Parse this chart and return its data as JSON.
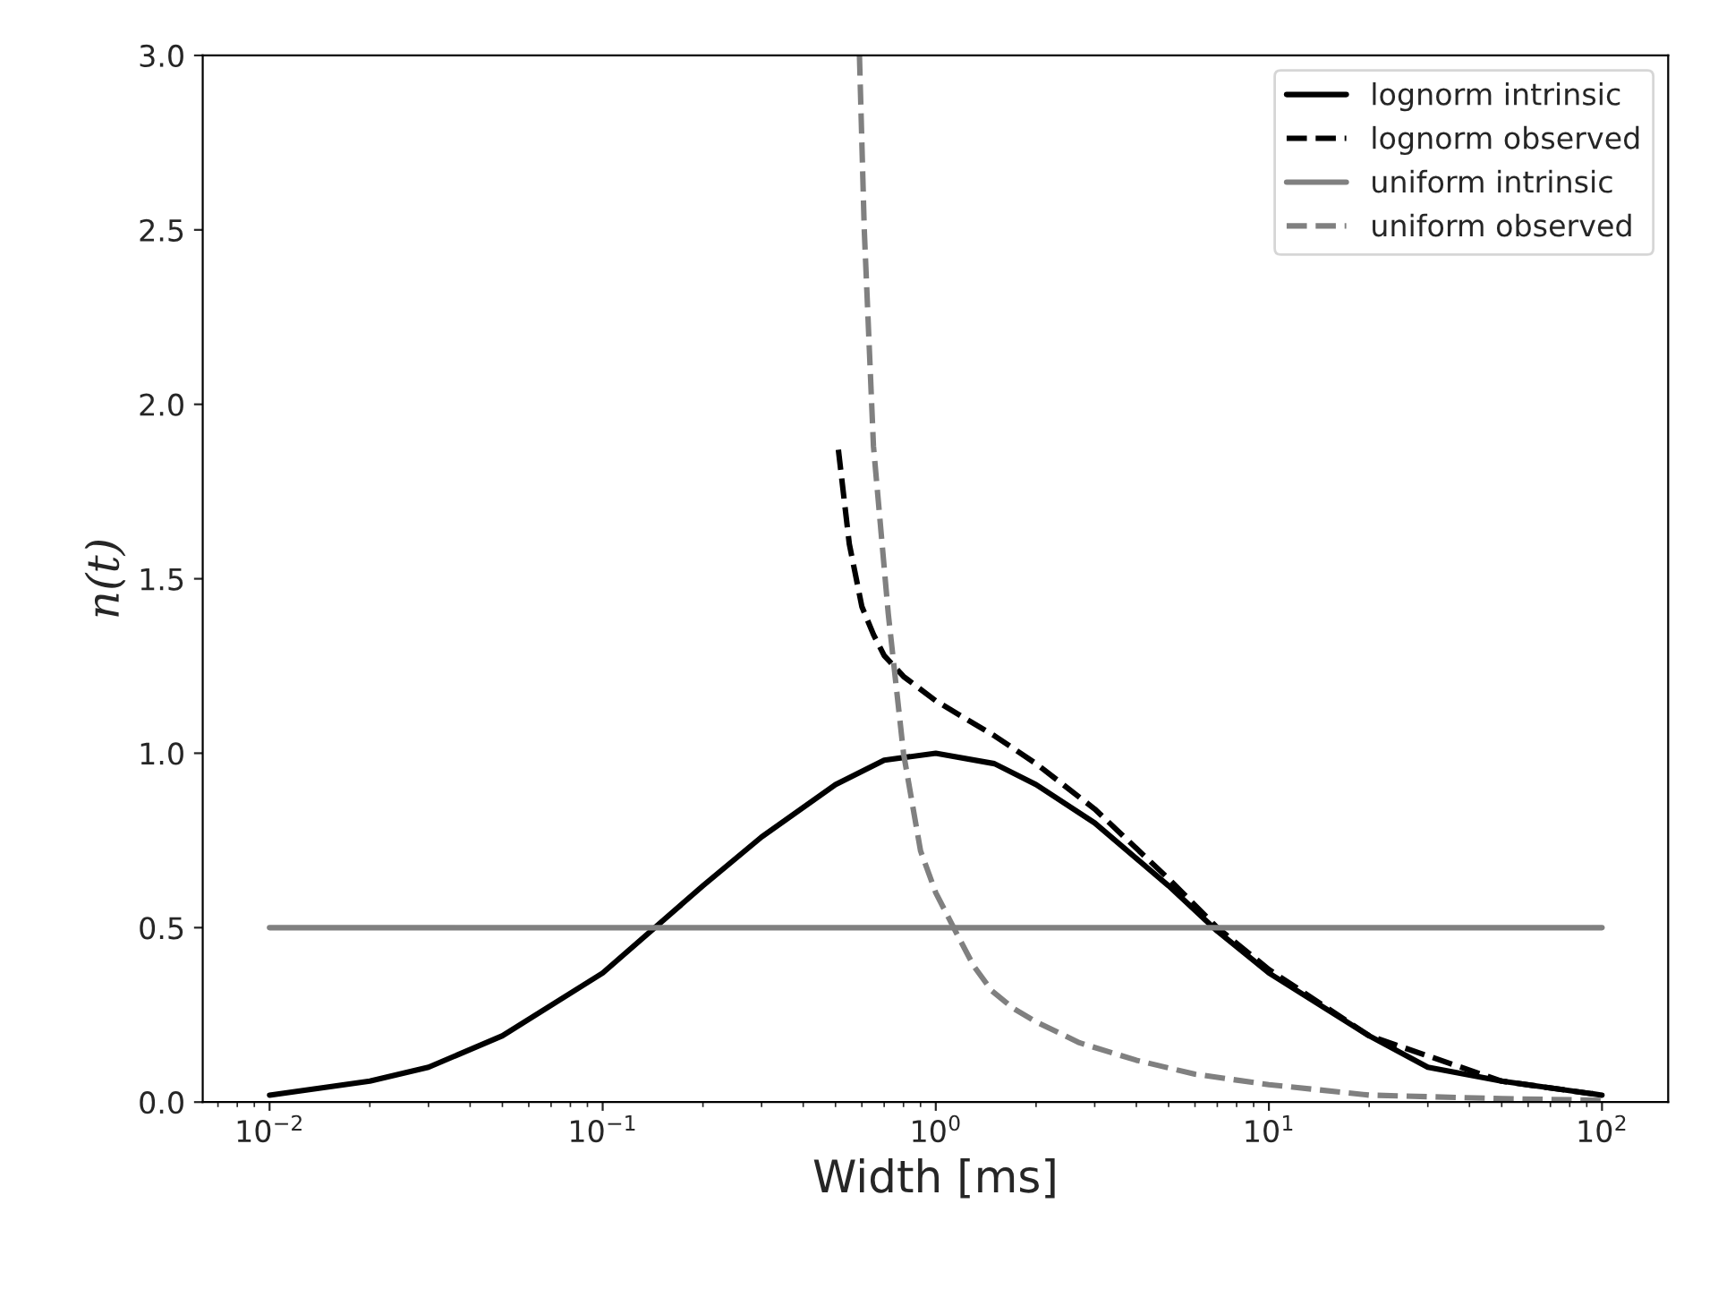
{
  "chart_data": {
    "type": "line",
    "xlabel": "Width [ms]",
    "ylabel": "n(t)",
    "log": "x",
    "xlim": [
      0.0063,
      158
    ],
    "ylim": [
      0,
      3.0
    ],
    "xticks": [
      {
        "value": 0.01,
        "label": "10$^{−2}$"
      },
      {
        "value": 0.1,
        "label": "10$^{−1}$"
      },
      {
        "value": 1,
        "label": "10$^{0}$"
      },
      {
        "value": 10,
        "label": "10$^{1}$"
      },
      {
        "value": 100,
        "label": "10$^{2}$"
      }
    ],
    "yticks": [
      {
        "value": 0,
        "label": "0.0"
      },
      {
        "value": 0.5,
        "label": "0.5"
      },
      {
        "value": 1.0,
        "label": "1.0"
      },
      {
        "value": 1.5,
        "label": "1.5"
      },
      {
        "value": 2.0,
        "label": "2.0"
      },
      {
        "value": 2.5,
        "label": "2.5"
      },
      {
        "value": 3.0,
        "label": "3.0"
      }
    ],
    "legend": "top right",
    "grid": false,
    "series": [
      {
        "name": "lognorm intrinsic",
        "color": "#000000",
        "line_style": "solid",
        "x": [
          0.01,
          0.02,
          0.03,
          0.05,
          0.1,
          0.2,
          0.3,
          0.5,
          0.7,
          1,
          1.5,
          2,
          3,
          5,
          7,
          10,
          20,
          30,
          50,
          100
        ],
        "values": [
          0.02,
          0.06,
          0.1,
          0.19,
          0.37,
          0.62,
          0.76,
          0.91,
          0.98,
          1.0,
          0.97,
          0.91,
          0.8,
          0.62,
          0.49,
          0.37,
          0.19,
          0.1,
          0.06,
          0.02
        ]
      },
      {
        "name": "lognorm observed",
        "color": "#000000",
        "line_style": "dashed",
        "x": [
          0.51,
          0.55,
          0.6,
          0.65,
          0.7,
          0.8,
          1.0,
          1.5,
          2,
          3,
          5,
          7,
          10,
          20,
          50,
          100
        ],
        "values": [
          1.87,
          1.6,
          1.42,
          1.34,
          1.28,
          1.22,
          1.15,
          1.05,
          0.97,
          0.84,
          0.64,
          0.5,
          0.38,
          0.19,
          0.06,
          0.02
        ]
      },
      {
        "name": "uniform intrinsic",
        "color": "#808080",
        "line_style": "solid",
        "x": [
          0.01,
          100
        ],
        "values": [
          0.5,
          0.5
        ]
      },
      {
        "name": "uniform observed",
        "color": "#808080",
        "line_style": "dashed",
        "x": [
          0.59,
          0.61,
          0.65,
          0.72,
          0.8,
          0.9,
          1.0,
          1.16,
          1.3,
          1.47,
          1.7,
          2,
          2.7,
          4,
          6,
          10,
          20,
          50,
          100
        ],
        "values": [
          3.0,
          2.5,
          1.88,
          1.4,
          1.0,
          0.72,
          0.6,
          0.48,
          0.39,
          0.32,
          0.27,
          0.23,
          0.17,
          0.12,
          0.08,
          0.05,
          0.02,
          0.01,
          0.005
        ]
      }
    ]
  }
}
